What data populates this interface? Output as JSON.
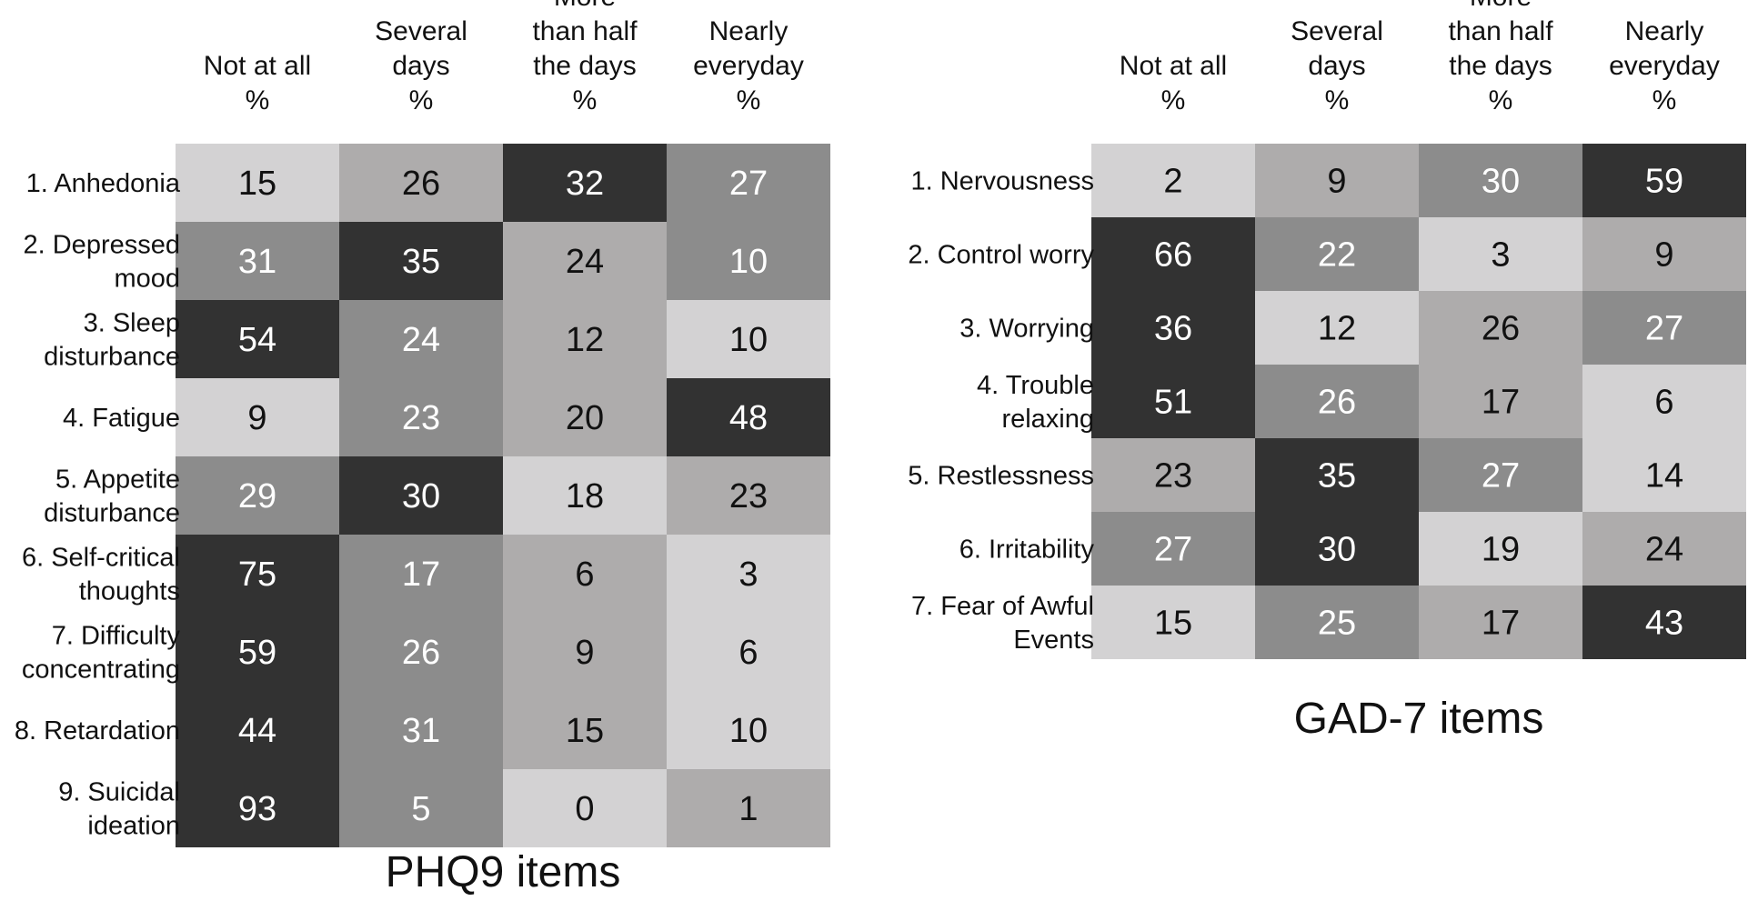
{
  "chart_data": [
    {
      "type": "heatmap",
      "title": "PHQ9 items",
      "columns": [
        [
          "Not at all",
          "%"
        ],
        [
          "Several",
          "days",
          "%"
        ],
        [
          "More",
          "than half",
          "the days",
          "%"
        ],
        [
          "Nearly",
          "everyday",
          "%"
        ]
      ],
      "rows": [
        [
          "1. Anhedonia"
        ],
        [
          "2. Depressed",
          "mood"
        ],
        [
          "3. Sleep",
          "disturbance"
        ],
        [
          "4. Fatigue"
        ],
        [
          "5. Appetite",
          "disturbance"
        ],
        [
          "6. Self-critical",
          "thoughts"
        ],
        [
          "7. Difficulty",
          "concentrating"
        ],
        [
          "8. Retardation"
        ],
        [
          "9. Suicidal",
          "ideation"
        ]
      ],
      "values": [
        [
          15,
          26,
          32,
          27
        ],
        [
          31,
          35,
          24,
          10
        ],
        [
          54,
          24,
          12,
          10
        ],
        [
          9,
          23,
          20,
          48
        ],
        [
          29,
          30,
          18,
          23
        ],
        [
          75,
          17,
          6,
          3
        ],
        [
          59,
          26,
          9,
          6
        ],
        [
          44,
          31,
          15,
          10
        ],
        [
          93,
          5,
          0,
          1
        ]
      ],
      "cell_shades": [
        [
          1,
          2,
          4,
          3
        ],
        [
          3,
          4,
          2,
          3
        ],
        [
          4,
          3,
          2,
          1
        ],
        [
          1,
          3,
          2,
          4
        ],
        [
          3,
          4,
          1,
          2
        ],
        [
          4,
          3,
          2,
          1
        ],
        [
          4,
          3,
          2,
          1
        ],
        [
          4,
          3,
          2,
          1
        ],
        [
          4,
          3,
          1,
          2
        ]
      ]
    },
    {
      "type": "heatmap",
      "title": "GAD-7 items",
      "columns": [
        [
          "Not at all",
          "%"
        ],
        [
          "Several",
          "days",
          "%"
        ],
        [
          "More",
          "than half",
          "the days",
          "%"
        ],
        [
          "Nearly",
          "everyday",
          "%"
        ]
      ],
      "rows": [
        [
          "1. Nervousness"
        ],
        [
          "2. Control worry"
        ],
        [
          "3. Worrying"
        ],
        [
          "4. Trouble",
          "relaxing"
        ],
        [
          "5. Restlessness"
        ],
        [
          "6. Irritability"
        ],
        [
          "7. Fear of Awful",
          "Events"
        ]
      ],
      "values": [
        [
          2,
          9,
          30,
          59
        ],
        [
          66,
          22,
          3,
          9
        ],
        [
          36,
          12,
          26,
          27
        ],
        [
          51,
          26,
          17,
          6
        ],
        [
          23,
          35,
          27,
          14
        ],
        [
          27,
          30,
          19,
          24
        ],
        [
          15,
          25,
          17,
          43
        ]
      ],
      "cell_shades": [
        [
          1,
          2,
          3,
          4
        ],
        [
          4,
          3,
          1,
          2
        ],
        [
          4,
          1,
          2,
          3
        ],
        [
          4,
          3,
          2,
          1
        ],
        [
          2,
          4,
          3,
          1
        ],
        [
          3,
          4,
          1,
          2
        ],
        [
          1,
          3,
          2,
          4
        ]
      ]
    }
  ],
  "colors": {
    "shade_1": "#d3d2d3",
    "shade_2": "#aeacac",
    "shade_3": "#8c8c8c",
    "shade_4": "#323232",
    "text_dark": "#111111",
    "text_light": "#ffffff"
  }
}
